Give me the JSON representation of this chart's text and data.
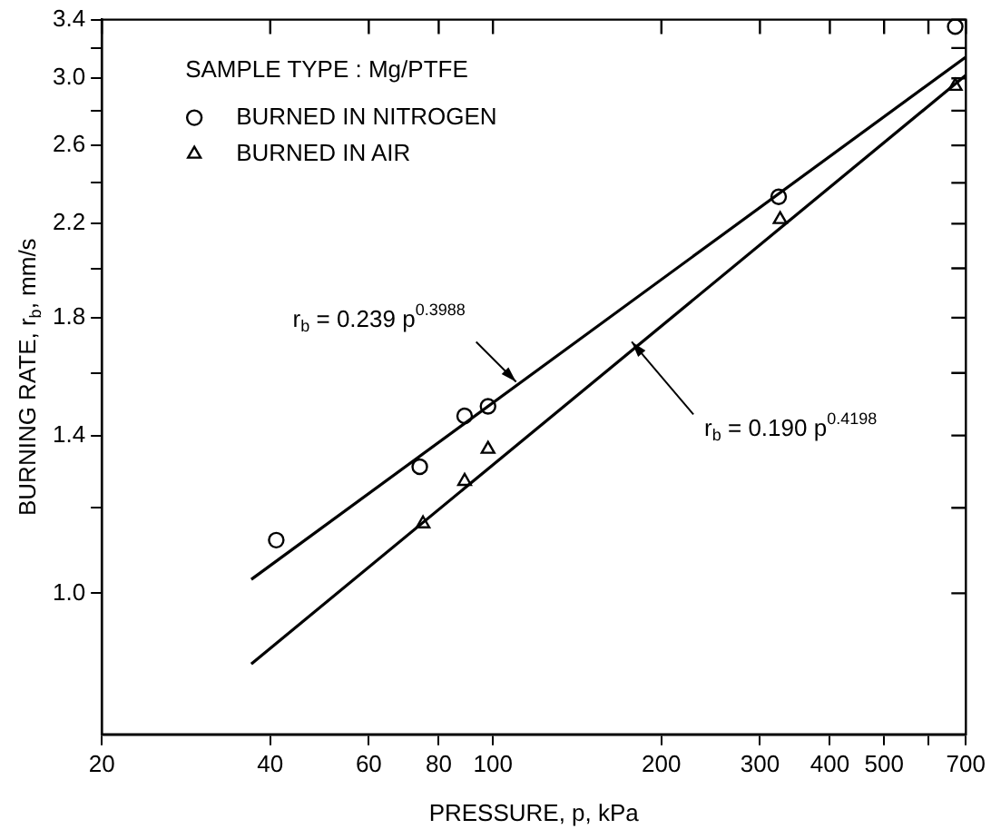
{
  "chart_data": {
    "type": "scatter",
    "xlabel": "PRESSURE, p, kPa",
    "ylabel": "BURNING RATE, r$_{b}$, mm/s",
    "legend_title": "SAMPLE TYPE : Mg/PTFE",
    "legend": "top left",
    "log": "xy",
    "grid": false,
    "xlim": [
      20,
      700
    ],
    "ylim": [
      0.74,
      3.4
    ],
    "xticks": [
      20,
      40,
      60,
      80,
      100,
      200,
      300,
      400,
      500,
      {
        "value": 600,
        "label": null
      },
      700
    ],
    "yticks": [
      {
        "value": 1,
        "label": "1.0"
      },
      {
        "value": 1.2,
        "label": null
      },
      1.4,
      {
        "value": 1.6,
        "label": null
      },
      1.8,
      {
        "value": 2,
        "label": null
      },
      2.2,
      {
        "value": 2.4,
        "label": null
      },
      2.6,
      {
        "value": 2.8,
        "label": null
      },
      {
        "value": 3,
        "label": "3.0"
      },
      {
        "value": 3.2,
        "label": null
      },
      3.4
    ],
    "series": [
      {
        "name": "BURNED IN NITROGEN",
        "type": "scatter",
        "marker": "circle",
        "color": "#000000",
        "x": [
          41,
          74,
          89,
          98,
          324,
          670
        ],
        "values": [
          1.12,
          1.31,
          1.46,
          1.49,
          2.33,
          3.35
        ]
      },
      {
        "name": "BURNED IN AIR",
        "type": "scatter",
        "marker": "triangle",
        "color": "#000000",
        "x": [
          75,
          89,
          98,
          326,
          670
        ],
        "values": [
          1.16,
          1.27,
          1.36,
          2.22,
          2.95
        ]
      },
      {
        "type": "line",
        "marker": "none",
        "color": "#000000",
        "x": [
          37,
          700
        ],
        "values": [
          1.03,
          3.14
        ]
      },
      {
        "type": "line",
        "marker": "none",
        "color": "#000000",
        "x": [
          37,
          700
        ],
        "values": [
          0.86,
          3.02
        ]
      }
    ],
    "annotations": [
      {
        "text": "r$_{b}$ = 0.239 p$^{0.3988}$",
        "x": 110,
        "y": 1.57
      },
      {
        "text": "r$_{b}$ = 0.190 p$^{0.4198}$",
        "x": 177,
        "y": 1.71
      }
    ]
  }
}
